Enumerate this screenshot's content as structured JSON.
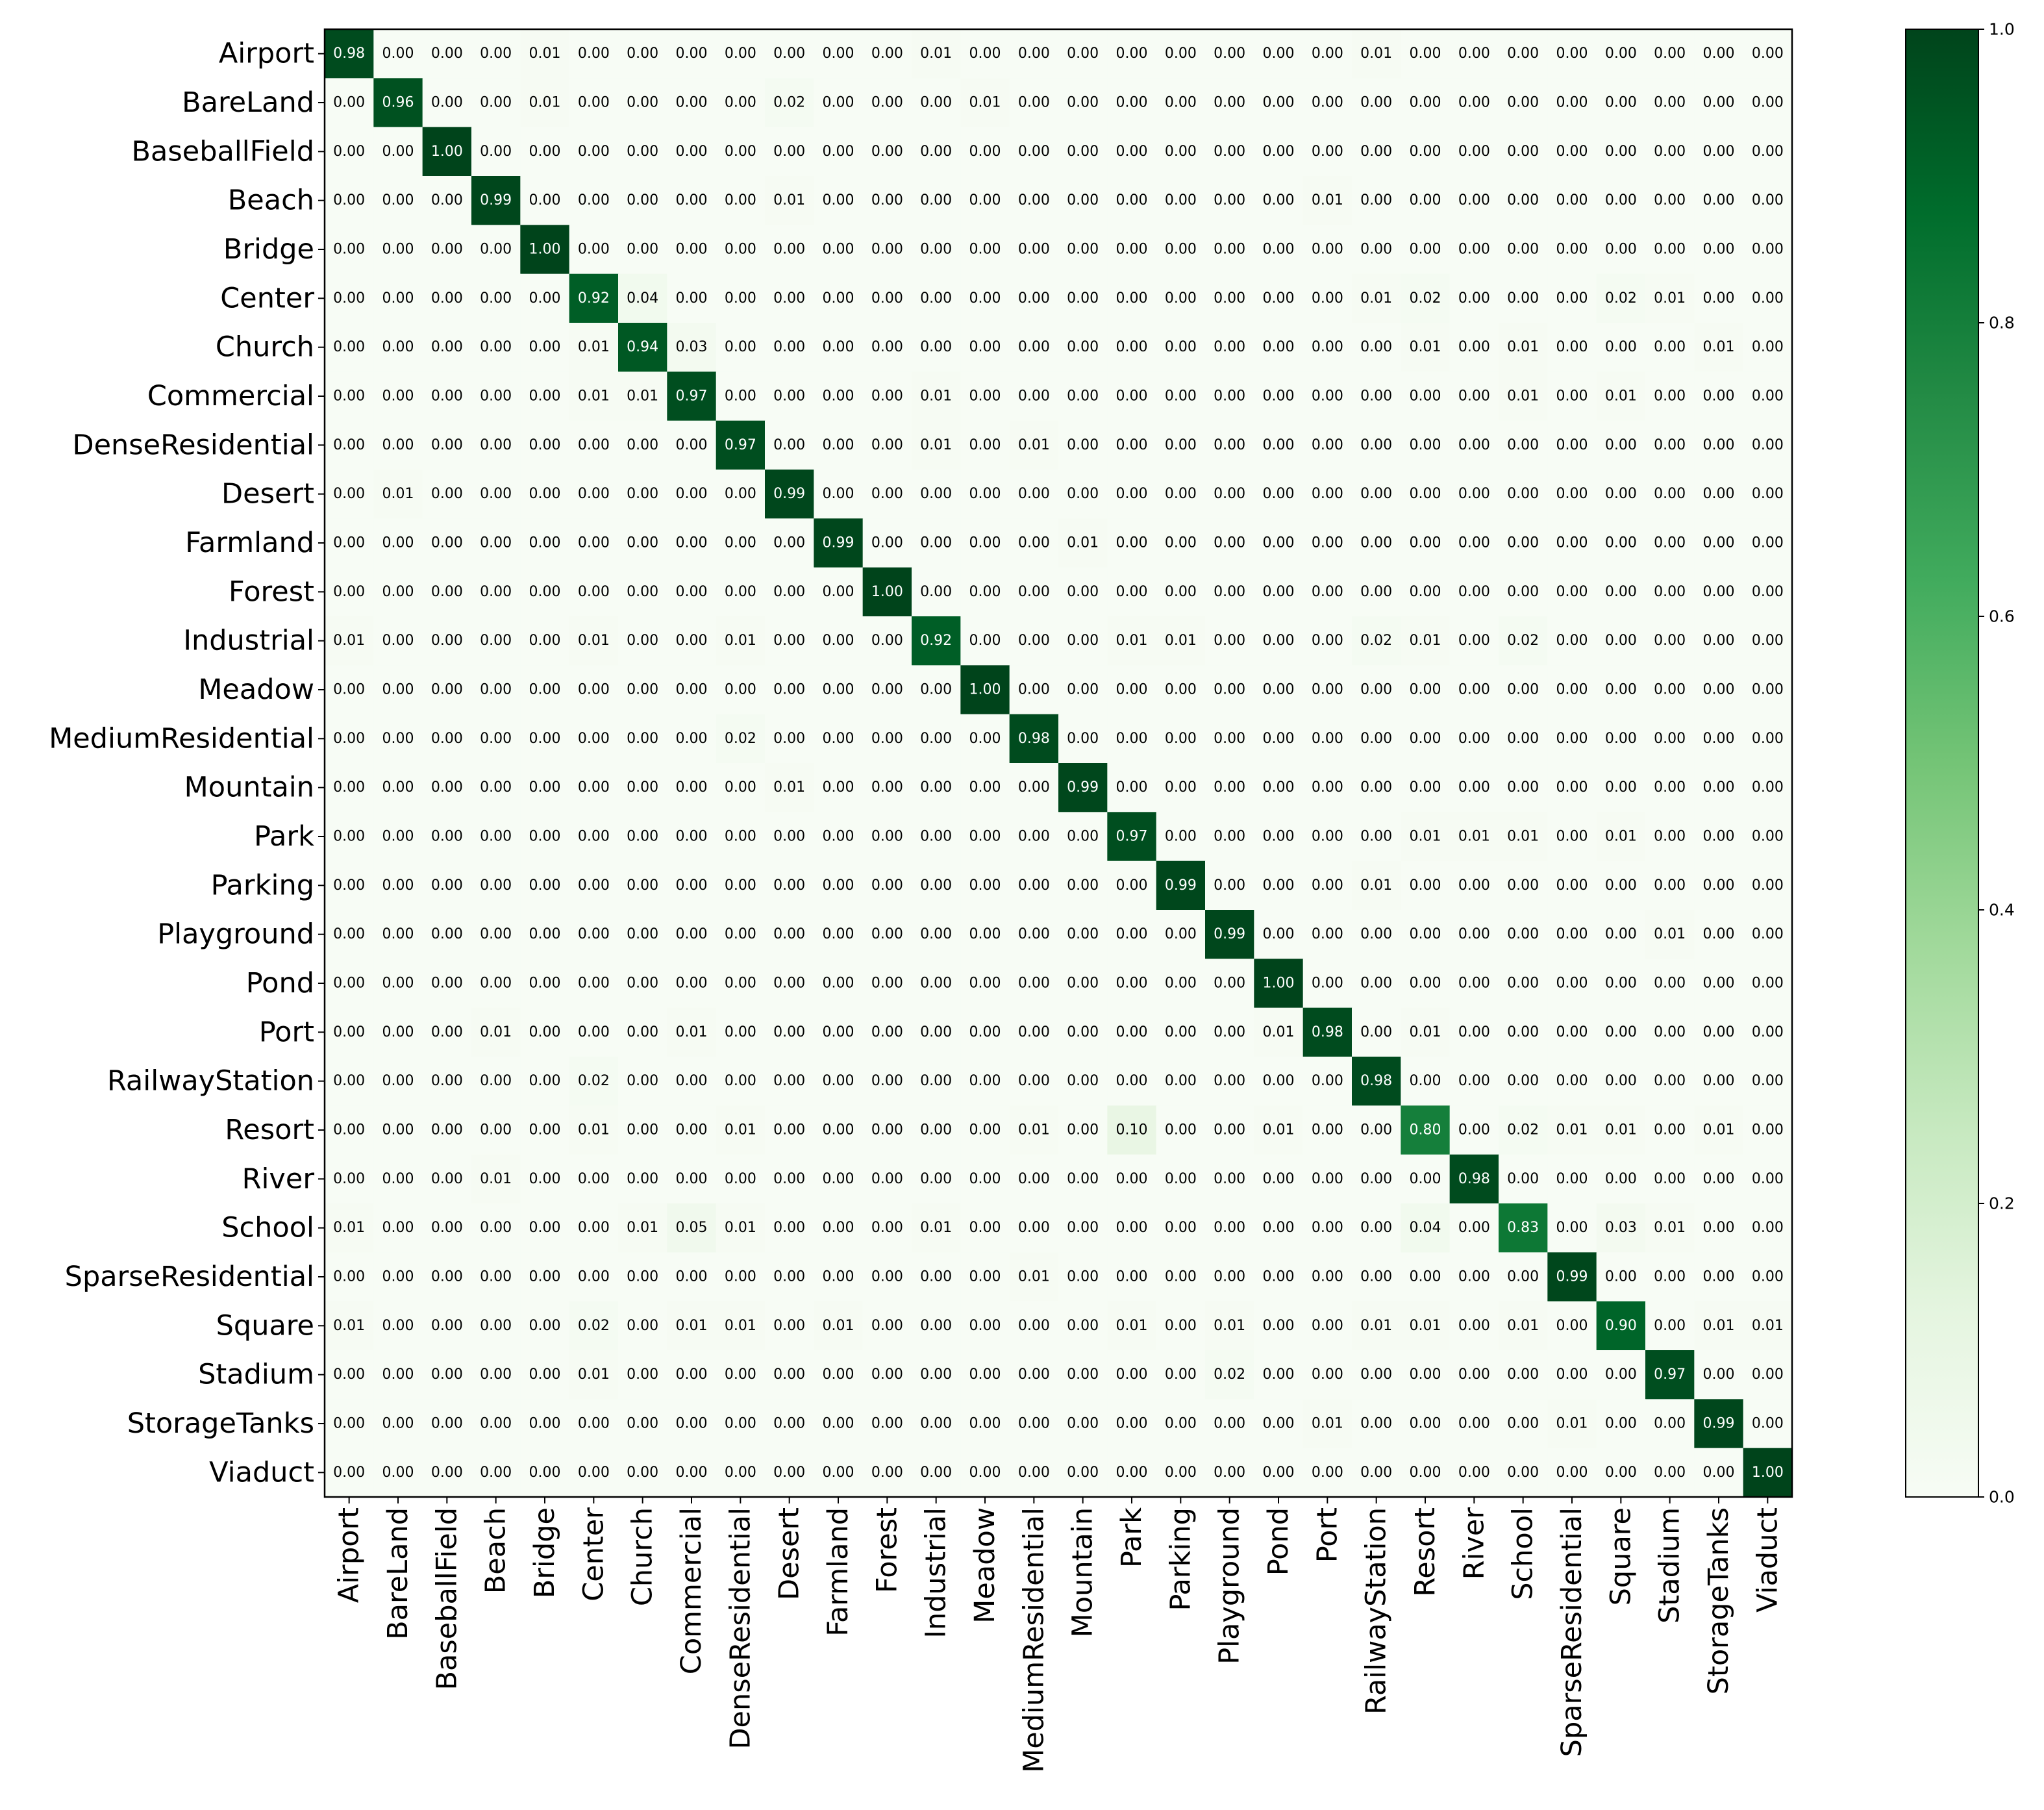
{
  "chart_data": {
    "type": "heatmap",
    "title": "",
    "xlabel": "",
    "ylabel": "",
    "categories": [
      "Airport",
      "BareLand",
      "BaseballField",
      "Beach",
      "Bridge",
      "Center",
      "Church",
      "Commercial",
      "DenseResidential",
      "Desert",
      "Farmland",
      "Forest",
      "Industrial",
      "Meadow",
      "MediumResidential",
      "Mountain",
      "Park",
      "Parking",
      "Playground",
      "Pond",
      "Port",
      "RailwayStation",
      "Resort",
      "River",
      "School",
      "SparseResidential",
      "Square",
      "Stadium",
      "StorageTanks",
      "Viaduct"
    ],
    "values": [
      [
        0.98,
        0.0,
        0.0,
        0.0,
        0.01,
        0.0,
        0.0,
        0.0,
        0.0,
        0.0,
        0.0,
        0.0,
        0.01,
        0.0,
        0.0,
        0.0,
        0.0,
        0.0,
        0.0,
        0.0,
        0.0,
        0.01,
        0.0,
        0.0,
        0.0,
        0.0,
        0.0,
        0.0,
        0.0,
        0.0
      ],
      [
        0.0,
        0.96,
        0.0,
        0.0,
        0.01,
        0.0,
        0.0,
        0.0,
        0.0,
        0.02,
        0.0,
        0.0,
        0.0,
        0.01,
        0.0,
        0.0,
        0.0,
        0.0,
        0.0,
        0.0,
        0.0,
        0.0,
        0.0,
        0.0,
        0.0,
        0.0,
        0.0,
        0.0,
        0.0,
        0.0
      ],
      [
        0.0,
        0.0,
        1.0,
        0.0,
        0.0,
        0.0,
        0.0,
        0.0,
        0.0,
        0.0,
        0.0,
        0.0,
        0.0,
        0.0,
        0.0,
        0.0,
        0.0,
        0.0,
        0.0,
        0.0,
        0.0,
        0.0,
        0.0,
        0.0,
        0.0,
        0.0,
        0.0,
        0.0,
        0.0,
        0.0
      ],
      [
        0.0,
        0.0,
        0.0,
        0.99,
        0.0,
        0.0,
        0.0,
        0.0,
        0.0,
        0.01,
        0.0,
        0.0,
        0.0,
        0.0,
        0.0,
        0.0,
        0.0,
        0.0,
        0.0,
        0.0,
        0.01,
        0.0,
        0.0,
        0.0,
        0.0,
        0.0,
        0.0,
        0.0,
        0.0,
        0.0
      ],
      [
        0.0,
        0.0,
        0.0,
        0.0,
        1.0,
        0.0,
        0.0,
        0.0,
        0.0,
        0.0,
        0.0,
        0.0,
        0.0,
        0.0,
        0.0,
        0.0,
        0.0,
        0.0,
        0.0,
        0.0,
        0.0,
        0.0,
        0.0,
        0.0,
        0.0,
        0.0,
        0.0,
        0.0,
        0.0,
        0.0
      ],
      [
        0.0,
        0.0,
        0.0,
        0.0,
        0.0,
        0.92,
        0.04,
        0.0,
        0.0,
        0.0,
        0.0,
        0.0,
        0.0,
        0.0,
        0.0,
        0.0,
        0.0,
        0.0,
        0.0,
        0.0,
        0.0,
        0.01,
        0.02,
        0.0,
        0.0,
        0.0,
        0.02,
        0.01,
        0.0,
        0.0
      ],
      [
        0.0,
        0.0,
        0.0,
        0.0,
        0.0,
        0.01,
        0.94,
        0.03,
        0.0,
        0.0,
        0.0,
        0.0,
        0.0,
        0.0,
        0.0,
        0.0,
        0.0,
        0.0,
        0.0,
        0.0,
        0.0,
        0.0,
        0.01,
        0.0,
        0.01,
        0.0,
        0.0,
        0.0,
        0.01,
        0.0
      ],
      [
        0.0,
        0.0,
        0.0,
        0.0,
        0.0,
        0.01,
        0.01,
        0.97,
        0.0,
        0.0,
        0.0,
        0.0,
        0.01,
        0.0,
        0.0,
        0.0,
        0.0,
        0.0,
        0.0,
        0.0,
        0.0,
        0.0,
        0.0,
        0.0,
        0.01,
        0.0,
        0.01,
        0.0,
        0.0,
        0.0
      ],
      [
        0.0,
        0.0,
        0.0,
        0.0,
        0.0,
        0.0,
        0.0,
        0.0,
        0.97,
        0.0,
        0.0,
        0.0,
        0.01,
        0.0,
        0.01,
        0.0,
        0.0,
        0.0,
        0.0,
        0.0,
        0.0,
        0.0,
        0.0,
        0.0,
        0.0,
        0.0,
        0.0,
        0.0,
        0.0,
        0.0
      ],
      [
        0.0,
        0.01,
        0.0,
        0.0,
        0.0,
        0.0,
        0.0,
        0.0,
        0.0,
        0.99,
        0.0,
        0.0,
        0.0,
        0.0,
        0.0,
        0.0,
        0.0,
        0.0,
        0.0,
        0.0,
        0.0,
        0.0,
        0.0,
        0.0,
        0.0,
        0.0,
        0.0,
        0.0,
        0.0,
        0.0
      ],
      [
        0.0,
        0.0,
        0.0,
        0.0,
        0.0,
        0.0,
        0.0,
        0.0,
        0.0,
        0.0,
        0.99,
        0.0,
        0.0,
        0.0,
        0.0,
        0.01,
        0.0,
        0.0,
        0.0,
        0.0,
        0.0,
        0.0,
        0.0,
        0.0,
        0.0,
        0.0,
        0.0,
        0.0,
        0.0,
        0.0
      ],
      [
        0.0,
        0.0,
        0.0,
        0.0,
        0.0,
        0.0,
        0.0,
        0.0,
        0.0,
        0.0,
        0.0,
        1.0,
        0.0,
        0.0,
        0.0,
        0.0,
        0.0,
        0.0,
        0.0,
        0.0,
        0.0,
        0.0,
        0.0,
        0.0,
        0.0,
        0.0,
        0.0,
        0.0,
        0.0,
        0.0
      ],
      [
        0.01,
        0.0,
        0.0,
        0.0,
        0.0,
        0.01,
        0.0,
        0.0,
        0.01,
        0.0,
        0.0,
        0.0,
        0.92,
        0.0,
        0.0,
        0.0,
        0.01,
        0.01,
        0.0,
        0.0,
        0.0,
        0.02,
        0.01,
        0.0,
        0.02,
        0.0,
        0.0,
        0.0,
        0.0,
        0.0
      ],
      [
        0.0,
        0.0,
        0.0,
        0.0,
        0.0,
        0.0,
        0.0,
        0.0,
        0.0,
        0.0,
        0.0,
        0.0,
        0.0,
        1.0,
        0.0,
        0.0,
        0.0,
        0.0,
        0.0,
        0.0,
        0.0,
        0.0,
        0.0,
        0.0,
        0.0,
        0.0,
        0.0,
        0.0,
        0.0,
        0.0
      ],
      [
        0.0,
        0.0,
        0.0,
        0.0,
        0.0,
        0.0,
        0.0,
        0.0,
        0.02,
        0.0,
        0.0,
        0.0,
        0.0,
        0.0,
        0.98,
        0.0,
        0.0,
        0.0,
        0.0,
        0.0,
        0.0,
        0.0,
        0.0,
        0.0,
        0.0,
        0.0,
        0.0,
        0.0,
        0.0,
        0.0
      ],
      [
        0.0,
        0.0,
        0.0,
        0.0,
        0.0,
        0.0,
        0.0,
        0.0,
        0.0,
        0.01,
        0.0,
        0.0,
        0.0,
        0.0,
        0.0,
        0.99,
        0.0,
        0.0,
        0.0,
        0.0,
        0.0,
        0.0,
        0.0,
        0.0,
        0.0,
        0.0,
        0.0,
        0.0,
        0.0,
        0.0
      ],
      [
        0.0,
        0.0,
        0.0,
        0.0,
        0.0,
        0.0,
        0.0,
        0.0,
        0.0,
        0.0,
        0.0,
        0.0,
        0.0,
        0.0,
        0.0,
        0.0,
        0.97,
        0.0,
        0.0,
        0.0,
        0.0,
        0.0,
        0.01,
        0.01,
        0.01,
        0.0,
        0.01,
        0.0,
        0.0,
        0.0
      ],
      [
        0.0,
        0.0,
        0.0,
        0.0,
        0.0,
        0.0,
        0.0,
        0.0,
        0.0,
        0.0,
        0.0,
        0.0,
        0.0,
        0.0,
        0.0,
        0.0,
        0.0,
        0.99,
        0.0,
        0.0,
        0.0,
        0.01,
        0.0,
        0.0,
        0.0,
        0.0,
        0.0,
        0.0,
        0.0,
        0.0
      ],
      [
        0.0,
        0.0,
        0.0,
        0.0,
        0.0,
        0.0,
        0.0,
        0.0,
        0.0,
        0.0,
        0.0,
        0.0,
        0.0,
        0.0,
        0.0,
        0.0,
        0.0,
        0.0,
        0.99,
        0.0,
        0.0,
        0.0,
        0.0,
        0.0,
        0.0,
        0.0,
        0.0,
        0.01,
        0.0,
        0.0
      ],
      [
        0.0,
        0.0,
        0.0,
        0.0,
        0.0,
        0.0,
        0.0,
        0.0,
        0.0,
        0.0,
        0.0,
        0.0,
        0.0,
        0.0,
        0.0,
        0.0,
        0.0,
        0.0,
        0.0,
        1.0,
        0.0,
        0.0,
        0.0,
        0.0,
        0.0,
        0.0,
        0.0,
        0.0,
        0.0,
        0.0
      ],
      [
        0.0,
        0.0,
        0.0,
        0.01,
        0.0,
        0.0,
        0.0,
        0.01,
        0.0,
        0.0,
        0.0,
        0.0,
        0.0,
        0.0,
        0.0,
        0.0,
        0.0,
        0.0,
        0.0,
        0.01,
        0.98,
        0.0,
        0.01,
        0.0,
        0.0,
        0.0,
        0.0,
        0.0,
        0.0,
        0.0
      ],
      [
        0.0,
        0.0,
        0.0,
        0.0,
        0.0,
        0.02,
        0.0,
        0.0,
        0.0,
        0.0,
        0.0,
        0.0,
        0.0,
        0.0,
        0.0,
        0.0,
        0.0,
        0.0,
        0.0,
        0.0,
        0.0,
        0.98,
        0.0,
        0.0,
        0.0,
        0.0,
        0.0,
        0.0,
        0.0,
        0.0
      ],
      [
        0.0,
        0.0,
        0.0,
        0.0,
        0.0,
        0.01,
        0.0,
        0.0,
        0.01,
        0.0,
        0.0,
        0.0,
        0.0,
        0.0,
        0.01,
        0.0,
        0.1,
        0.0,
        0.0,
        0.01,
        0.0,
        0.0,
        0.8,
        0.0,
        0.02,
        0.01,
        0.01,
        0.0,
        0.01,
        0.0
      ],
      [
        0.0,
        0.0,
        0.0,
        0.01,
        0.0,
        0.0,
        0.0,
        0.0,
        0.0,
        0.0,
        0.0,
        0.0,
        0.0,
        0.0,
        0.0,
        0.0,
        0.0,
        0.0,
        0.0,
        0.0,
        0.0,
        0.0,
        0.0,
        0.98,
        0.0,
        0.0,
        0.0,
        0.0,
        0.0,
        0.0
      ],
      [
        0.01,
        0.0,
        0.0,
        0.0,
        0.0,
        0.0,
        0.01,
        0.05,
        0.01,
        0.0,
        0.0,
        0.0,
        0.01,
        0.0,
        0.0,
        0.0,
        0.0,
        0.0,
        0.0,
        0.0,
        0.0,
        0.0,
        0.04,
        0.0,
        0.83,
        0.0,
        0.03,
        0.01,
        0.0,
        0.0
      ],
      [
        0.0,
        0.0,
        0.0,
        0.0,
        0.0,
        0.0,
        0.0,
        0.0,
        0.0,
        0.0,
        0.0,
        0.0,
        0.0,
        0.0,
        0.01,
        0.0,
        0.0,
        0.0,
        0.0,
        0.0,
        0.0,
        0.0,
        0.0,
        0.0,
        0.0,
        0.99,
        0.0,
        0.0,
        0.0,
        0.0
      ],
      [
        0.01,
        0.0,
        0.0,
        0.0,
        0.0,
        0.02,
        0.0,
        0.01,
        0.01,
        0.0,
        0.01,
        0.0,
        0.0,
        0.0,
        0.0,
        0.0,
        0.01,
        0.0,
        0.01,
        0.0,
        0.0,
        0.01,
        0.01,
        0.0,
        0.01,
        0.0,
        0.9,
        0.0,
        0.01,
        0.01
      ],
      [
        0.0,
        0.0,
        0.0,
        0.0,
        0.0,
        0.01,
        0.0,
        0.0,
        0.0,
        0.0,
        0.0,
        0.0,
        0.0,
        0.0,
        0.0,
        0.0,
        0.0,
        0.0,
        0.02,
        0.0,
        0.0,
        0.0,
        0.0,
        0.0,
        0.0,
        0.0,
        0.0,
        0.97,
        0.0,
        0.0
      ],
      [
        0.0,
        0.0,
        0.0,
        0.0,
        0.0,
        0.0,
        0.0,
        0.0,
        0.0,
        0.0,
        0.0,
        0.0,
        0.0,
        0.0,
        0.0,
        0.0,
        0.0,
        0.0,
        0.0,
        0.0,
        0.01,
        0.0,
        0.0,
        0.0,
        0.0,
        0.01,
        0.0,
        0.0,
        0.99,
        0.0
      ],
      [
        0.0,
        0.0,
        0.0,
        0.0,
        0.0,
        0.0,
        0.0,
        0.0,
        0.0,
        0.0,
        0.0,
        0.0,
        0.0,
        0.0,
        0.0,
        0.0,
        0.0,
        0.0,
        0.0,
        0.0,
        0.0,
        0.0,
        0.0,
        0.0,
        0.0,
        0.0,
        0.0,
        0.0,
        0.0,
        1.0
      ]
    ],
    "value_format": "2 decimals",
    "colormap": "Greens",
    "color_low": "#f7fcf5",
    "color_high": "#00441b",
    "colorbar": {
      "range": [
        0.0,
        1.0
      ],
      "ticks": [
        "0.0",
        "0.2",
        "0.4",
        "0.6",
        "0.8",
        "1.0"
      ]
    },
    "grid": false,
    "legend": "colorbar at right"
  }
}
